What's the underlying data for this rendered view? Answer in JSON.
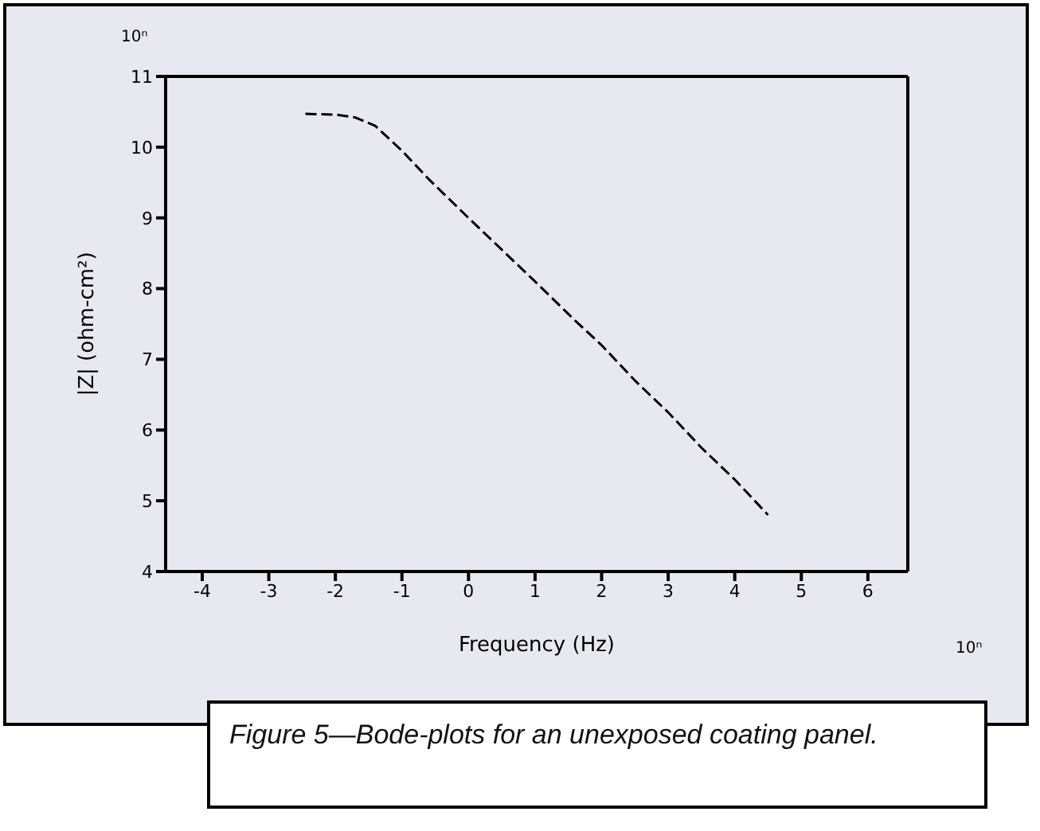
{
  "chart_data": {
    "type": "line",
    "xlabel": "Frequency (Hz)",
    "ylabel": "|Z| (ohm-cm²)",
    "annotations": [
      "10ⁿ",
      "10ⁿ",
      "Figure 5—Bode-plots for an unexposed coating panel."
    ],
    "x": [
      -2.45,
      -2.0,
      -1.7,
      -1.4,
      -1.0,
      -0.6,
      0,
      0.5,
      1,
      1.6,
      2,
      2.5,
      3,
      3.5,
      4,
      4.5
    ],
    "series": [
      {
        "color": "#000000",
        "values": [
          10.47,
          10.46,
          10.42,
          10.3,
          9.95,
          9.55,
          9.0,
          8.55,
          8.1,
          7.55,
          7.2,
          6.7,
          6.25,
          5.75,
          5.3,
          4.8
        ]
      }
    ],
    "xlim": [
      -4.55,
      6.6
    ],
    "xticks": [
      -4,
      -3,
      -2,
      -1,
      0,
      1,
      2,
      3,
      4,
      5,
      6
    ],
    "ylim": [
      4,
      11
    ],
    "yticks": [
      4,
      5,
      6,
      7,
      8,
      9,
      10,
      11
    ],
    "grid": false,
    "legend": false,
    "marker": "none",
    "line_style": "dashed"
  }
}
